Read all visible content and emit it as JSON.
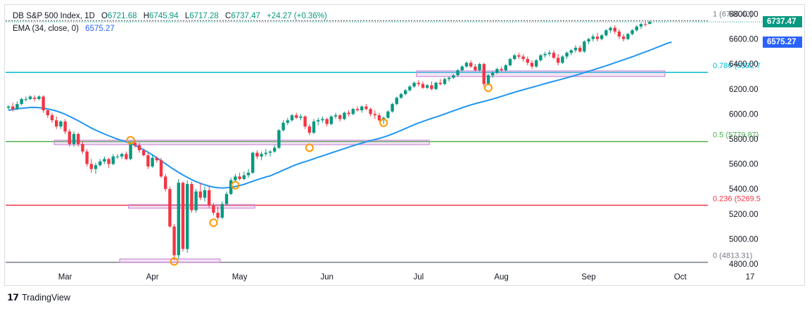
{
  "header": {
    "symbol": "DB S&P 500 Index, 1D",
    "o_label": "O",
    "open": "6721.68",
    "h_label": "H",
    "high": "6745.94",
    "l_label": "L",
    "low": "6717.28",
    "c_label": "C",
    "close": "6737.47",
    "change": "+24.27 (+0.36%)",
    "ema_label": "EMA (34, close, 0)",
    "ema_value": "6575.27"
  },
  "price_tags": {
    "last": "6737.47",
    "ema": "6575.27",
    "last_color": "#089981",
    "ema_color": "#2962ff"
  },
  "fib_labels": [
    {
      "text": "1 (6746.42)",
      "price": 6746.42,
      "color": "#787b86"
    },
    {
      "text": "0.786 (6332.7",
      "price": 6332.7,
      "color": "#00bcd4"
    },
    {
      "text": "0.5 (5779.87)",
      "price": 5779.87,
      "color": "#4caf50"
    },
    {
      "text": "0.236 (5269.5",
      "price": 5269.5,
      "color": "#f23645"
    },
    {
      "text": "0 (4813.31)",
      "price": 4813.31,
      "color": "#787b86"
    }
  ],
  "footer": {
    "brand": "TradingView"
  },
  "chart_data": {
    "type": "candlestick",
    "title": "DB S&P 500 Index, 1D",
    "ylim": [
      4780,
      6820
    ],
    "y_ticks": [
      "6800.00",
      "6600.00",
      "6400.00",
      "6200.00",
      "6000.00",
      "5800.00",
      "5600.00",
      "5400.00",
      "5200.00",
      "5000.00",
      "4800.00"
    ],
    "x_ticks": [
      "Mar",
      "Apr",
      "May",
      "Jun",
      "Jul",
      "Aug",
      "Sep",
      "Oct",
      "17"
    ],
    "colors": {
      "up": "#089981",
      "down": "#f23645",
      "ema": "#2196f3",
      "box": "#ce93d8"
    },
    "fib_levels": [
      {
        "ratio": "1",
        "price": 6746.42
      },
      {
        "ratio": "0.786",
        "price": 6332.7
      },
      {
        "ratio": "0.5",
        "price": 5779.87
      },
      {
        "ratio": "0.236",
        "price": 5269.5
      },
      {
        "ratio": "0",
        "price": 4813.31
      }
    ],
    "ohlc": [
      [
        6050,
        6070,
        6030,
        6060
      ],
      [
        6060,
        6090,
        6020,
        6040
      ],
      [
        6040,
        6100,
        6030,
        6080
      ],
      [
        6080,
        6130,
        6070,
        6120
      ],
      [
        6120,
        6140,
        6100,
        6120
      ],
      [
        6120,
        6150,
        6110,
        6140
      ],
      [
        6130,
        6150,
        6100,
        6120
      ],
      [
        6120,
        6150,
        6110,
        6140
      ],
      [
        6140,
        6150,
        6010,
        6030
      ],
      [
        6030,
        6040,
        5970,
        5990
      ],
      [
        5990,
        6010,
        5930,
        5950
      ],
      [
        5950,
        5980,
        5880,
        5900
      ],
      [
        5900,
        5950,
        5880,
        5940
      ],
      [
        5940,
        5960,
        5840,
        5860
      ],
      [
        5860,
        5880,
        5740,
        5760
      ],
      [
        5760,
        5860,
        5740,
        5840
      ],
      [
        5840,
        5850,
        5740,
        5760
      ],
      [
        5760,
        5780,
        5680,
        5700
      ],
      [
        5700,
        5720,
        5580,
        5600
      ],
      [
        5600,
        5640,
        5530,
        5560
      ],
      [
        5560,
        5610,
        5520,
        5590
      ],
      [
        5590,
        5640,
        5580,
        5620
      ],
      [
        5620,
        5660,
        5600,
        5640
      ],
      [
        5640,
        5650,
        5570,
        5600
      ],
      [
        5600,
        5680,
        5590,
        5660
      ],
      [
        5660,
        5680,
        5640,
        5660
      ],
      [
        5660,
        5690,
        5640,
        5680
      ],
      [
        5680,
        5700,
        5630,
        5640
      ],
      [
        5640,
        5780,
        5630,
        5770
      ],
      [
        5770,
        5790,
        5730,
        5750
      ],
      [
        5750,
        5770,
        5690,
        5710
      ],
      [
        5710,
        5720,
        5660,
        5670
      ],
      [
        5670,
        5690,
        5560,
        5580
      ],
      [
        5580,
        5670,
        5570,
        5650
      ],
      [
        5650,
        5660,
        5610,
        5630
      ],
      [
        5630,
        5650,
        5490,
        5500
      ],
      [
        5500,
        5520,
        5380,
        5400
      ],
      [
        5400,
        5420,
        5090,
        5100
      ],
      [
        5100,
        5120,
        4830,
        4870
      ],
      [
        4870,
        5480,
        4840,
        5450
      ],
      [
        5450,
        5460,
        4900,
        4920
      ],
      [
        4920,
        5470,
        4890,
        5440
      ],
      [
        5440,
        5460,
        5210,
        5230
      ],
      [
        5230,
        5400,
        5210,
        5380
      ],
      [
        5380,
        5450,
        5310,
        5330
      ],
      [
        5330,
        5420,
        5300,
        5390
      ],
      [
        5390,
        5420,
        5250,
        5270
      ],
      [
        5270,
        5290,
        5190,
        5210
      ],
      [
        5210,
        5260,
        5150,
        5170
      ],
      [
        5170,
        5300,
        5160,
        5280
      ],
      [
        5280,
        5380,
        5270,
        5360
      ],
      [
        5360,
        5490,
        5350,
        5470
      ],
      [
        5470,
        5520,
        5460,
        5500
      ],
      [
        5500,
        5530,
        5470,
        5480
      ],
      [
        5480,
        5540,
        5470,
        5510
      ],
      [
        5510,
        5560,
        5490,
        5530
      ],
      [
        5530,
        5700,
        5520,
        5690
      ],
      [
        5690,
        5710,
        5640,
        5660
      ],
      [
        5660,
        5700,
        5630,
        5680
      ],
      [
        5680,
        5720,
        5660,
        5690
      ],
      [
        5690,
        5710,
        5660,
        5700
      ],
      [
        5700,
        5750,
        5690,
        5730
      ],
      [
        5730,
        5880,
        5720,
        5870
      ],
      [
        5870,
        5950,
        5860,
        5930
      ],
      [
        5930,
        5970,
        5910,
        5950
      ],
      [
        5950,
        6000,
        5940,
        5990
      ],
      [
        5990,
        6010,
        5960,
        5970
      ],
      [
        5970,
        6000,
        5950,
        5980
      ],
      [
        5980,
        5990,
        5880,
        5900
      ],
      [
        5900,
        5920,
        5830,
        5850
      ],
      [
        5850,
        5960,
        5840,
        5940
      ],
      [
        5940,
        5970,
        5910,
        5950
      ],
      [
        5950,
        5980,
        5930,
        5960
      ],
      [
        5960,
        5970,
        5900,
        5920
      ],
      [
        5920,
        5990,
        5910,
        5980
      ],
      [
        5980,
        6010,
        5960,
        5990
      ],
      [
        5990,
        6000,
        5940,
        5960
      ],
      [
        5960,
        6020,
        5950,
        6010
      ],
      [
        6010,
        6030,
        5980,
        6000
      ],
      [
        6000,
        6050,
        5990,
        6040
      ],
      [
        6040,
        6060,
        6020,
        6030
      ],
      [
        6030,
        6070,
        6010,
        6060
      ],
      [
        6060,
        6080,
        6030,
        6040
      ],
      [
        6040,
        6050,
        5980,
        6000
      ],
      [
        6000,
        6030,
        5960,
        5990
      ],
      [
        5990,
        6010,
        5940,
        5950
      ],
      [
        5950,
        5980,
        5920,
        5970
      ],
      [
        5970,
        6030,
        5960,
        6020
      ],
      [
        6020,
        6090,
        6010,
        6080
      ],
      [
        6080,
        6140,
        6070,
        6130
      ],
      [
        6130,
        6170,
        6120,
        6160
      ],
      [
        6160,
        6200,
        6150,
        6190
      ],
      [
        6190,
        6230,
        6180,
        6220
      ],
      [
        6220,
        6260,
        6210,
        6250
      ],
      [
        6250,
        6270,
        6220,
        6240
      ],
      [
        6240,
        6260,
        6200,
        6210
      ],
      [
        6210,
        6240,
        6200,
        6230
      ],
      [
        6230,
        6260,
        6190,
        6200
      ],
      [
        6200,
        6260,
        6190,
        6250
      ],
      [
        6250,
        6280,
        6230,
        6240
      ],
      [
        6240,
        6290,
        6230,
        6280
      ],
      [
        6280,
        6300,
        6260,
        6290
      ],
      [
        6290,
        6320,
        6280,
        6310
      ],
      [
        6310,
        6360,
        6300,
        6350
      ],
      [
        6350,
        6390,
        6340,
        6380
      ],
      [
        6380,
        6420,
        6370,
        6410
      ],
      [
        6410,
        6430,
        6370,
        6380
      ],
      [
        6380,
        6400,
        6340,
        6350
      ],
      [
        6350,
        6410,
        6340,
        6400
      ],
      [
        6400,
        6410,
        6220,
        6240
      ],
      [
        6240,
        6320,
        6230,
        6310
      ],
      [
        6310,
        6340,
        6290,
        6330
      ],
      [
        6330,
        6370,
        6320,
        6360
      ],
      [
        6360,
        6380,
        6340,
        6350
      ],
      [
        6350,
        6400,
        6340,
        6390
      ],
      [
        6390,
        6450,
        6380,
        6440
      ],
      [
        6440,
        6480,
        6430,
        6470
      ],
      [
        6470,
        6490,
        6440,
        6460
      ],
      [
        6460,
        6480,
        6420,
        6440
      ],
      [
        6440,
        6460,
        6390,
        6410
      ],
      [
        6410,
        6430,
        6360,
        6380
      ],
      [
        6380,
        6440,
        6370,
        6430
      ],
      [
        6430,
        6480,
        6420,
        6470
      ],
      [
        6470,
        6500,
        6450,
        6480
      ],
      [
        6480,
        6510,
        6460,
        6490
      ],
      [
        6490,
        6510,
        6440,
        6450
      ],
      [
        6450,
        6480,
        6390,
        6410
      ],
      [
        6410,
        6470,
        6400,
        6460
      ],
      [
        6460,
        6500,
        6440,
        6490
      ],
      [
        6490,
        6520,
        6470,
        6510
      ],
      [
        6510,
        6550,
        6490,
        6530
      ],
      [
        6530,
        6550,
        6490,
        6500
      ],
      [
        6500,
        6590,
        6490,
        6580
      ],
      [
        6580,
        6610,
        6560,
        6600
      ],
      [
        6600,
        6640,
        6580,
        6620
      ],
      [
        6620,
        6650,
        6580,
        6600
      ],
      [
        6600,
        6640,
        6590,
        6630
      ],
      [
        6630,
        6680,
        6620,
        6670
      ],
      [
        6670,
        6700,
        6650,
        6690
      ],
      [
        6690,
        6710,
        6640,
        6660
      ],
      [
        6660,
        6680,
        6600,
        6620
      ],
      [
        6620,
        6640,
        6580,
        6600
      ],
      [
        6600,
        6650,
        6590,
        6640
      ],
      [
        6640,
        6680,
        6630,
        6670
      ],
      [
        6670,
        6710,
        6660,
        6700
      ],
      [
        6700,
        6730,
        6680,
        6720
      ],
      [
        6720,
        6740,
        6700,
        6715
      ],
      [
        6721.68,
        6745.94,
        6717.28,
        6737.47
      ]
    ],
    "ema": [
      6030,
      6036,
      6042,
      6046,
      6049,
      6052,
      6053,
      6051,
      6046,
      6040,
      6033,
      6024,
      6012,
      5998,
      5981,
      5964,
      5946,
      5927,
      5907,
      5888,
      5871,
      5855,
      5840,
      5826,
      5812,
      5799,
      5788,
      5777,
      5764,
      5749,
      5733,
      5714,
      5694,
      5673,
      5650,
      5626,
      5602,
      5578,
      5555,
      5533,
      5512,
      5493,
      5475,
      5459,
      5445,
      5433,
      5423,
      5415,
      5410,
      5408,
      5410,
      5414,
      5420,
      5428,
      5437,
      5450,
      5462,
      5474,
      5485,
      5496,
      5505,
      5520,
      5535,
      5551,
      5566,
      5581,
      5595,
      5608,
      5618,
      5630,
      5642,
      5654,
      5665,
      5677,
      5689,
      5700,
      5712,
      5723,
      5735,
      5746,
      5757,
      5767,
      5777,
      5787,
      5796,
      5805,
      5815,
      5827,
      5840,
      5854,
      5869,
      5884,
      5899,
      5914,
      5928,
      5941,
      5953,
      5965,
      5976,
      5988,
      6000,
      6013,
      6025,
      6038,
      6050,
      6062,
      6073,
      6083,
      6092,
      6101,
      6110,
      6120,
      6130,
      6141,
      6152,
      6163,
      6174,
      6184,
      6194,
      6204,
      6213,
      6223,
      6233,
      6243,
      6253,
      6262,
      6271,
      6280,
      6290,
      6300,
      6310,
      6320,
      6331,
      6342,
      6353,
      6364,
      6375,
      6386,
      6398,
      6410,
      6422,
      6434,
      6446,
      6458,
      6471,
      6484,
      6497,
      6510,
      6524,
      6538,
      6552,
      6566,
      6575.27
    ],
    "markers": [
      {
        "i": 28,
        "price": 5790
      },
      {
        "i": 38,
        "price": 4820
      },
      {
        "i": 47,
        "price": 5130
      },
      {
        "i": 52,
        "price": 5430
      },
      {
        "i": 69,
        "price": 5730
      },
      {
        "i": 86,
        "price": 5930
      },
      {
        "i": 110,
        "price": 6210
      }
    ],
    "boxes": [
      {
        "i0": 11,
        "i1": 96,
        "p0": 5755,
        "p1": 5790
      },
      {
        "i0": 28,
        "i1": 56,
        "p0": 5250,
        "p1": 5275
      },
      {
        "i0": 26,
        "i1": 48,
        "p0": 4815,
        "p1": 4840
      },
      {
        "i0": 94,
        "i1": 150,
        "p0": 6300,
        "p1": 6345
      }
    ],
    "x_tick_index": [
      13,
      33,
      53,
      73,
      94,
      113,
      133,
      154,
      170
    ]
  }
}
